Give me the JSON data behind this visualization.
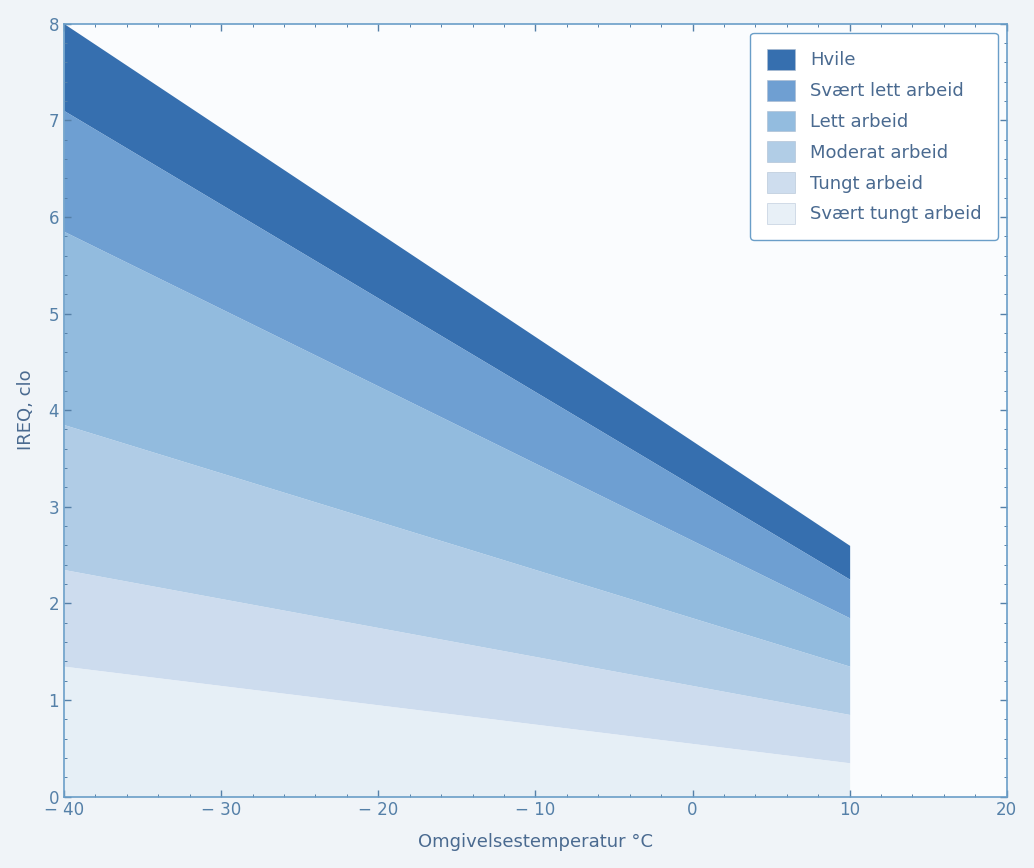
{
  "title": "",
  "xlabel": "Omgivelsestemperatur °C",
  "ylabel": "IREQ, clo",
  "xlim": [
    -40,
    20
  ],
  "ylim": [
    0,
    8
  ],
  "xticks": [
    -40,
    -30,
    -20,
    -10,
    0,
    10,
    20
  ],
  "yticks": [
    0,
    1,
    2,
    3,
    4,
    5,
    6,
    7,
    8
  ],
  "lines": [
    {
      "x": [
        -40,
        10
      ],
      "y": [
        8.0,
        2.6
      ]
    },
    {
      "x": [
        -40,
        10
      ],
      "y": [
        7.1,
        2.25
      ]
    },
    {
      "x": [
        -40,
        10
      ],
      "y": [
        5.85,
        1.85
      ]
    },
    {
      "x": [
        -40,
        10
      ],
      "y": [
        3.85,
        1.35
      ]
    },
    {
      "x": [
        -40,
        10
      ],
      "y": [
        2.35,
        0.85
      ]
    },
    {
      "x": [
        -40,
        10
      ],
      "y": [
        1.35,
        0.35
      ]
    },
    {
      "x": [
        -40,
        10
      ],
      "y": [
        0.0,
        0.0
      ]
    }
  ],
  "band_colors": [
    "#2563a8",
    "#5b92cc",
    "#7badd8",
    "#9bbfe0",
    "#bcd0e8",
    "#dce8f3"
  ],
  "band_labels": [
    "Hvile",
    "Svært lett arbeid",
    "Lett arbeid",
    "Moderat arbeid",
    "Tungt arbeid",
    "Svært tungt arbeid"
  ],
  "band_alphas": [
    0.92,
    0.88,
    0.82,
    0.78,
    0.72,
    0.65
  ],
  "axis_color": "#6a9ec8",
  "tick_color": "#5580a8",
  "label_color": "#4a6a90",
  "legend_fontsize": 13,
  "axis_label_fontsize": 13,
  "tick_fontsize": 12,
  "background_color": "#f0f4f8",
  "plot_bg_color": "#fafcfe"
}
